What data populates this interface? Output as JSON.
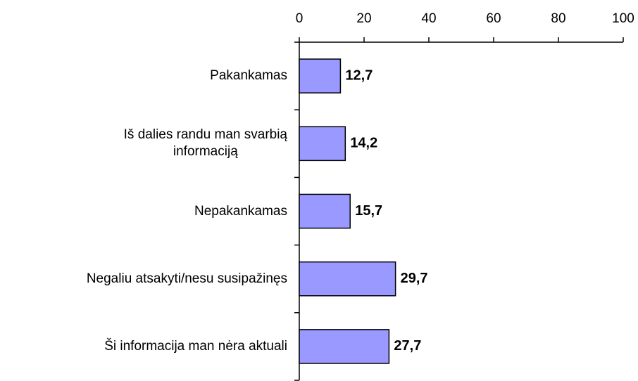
{
  "chart_data": {
    "type": "bar",
    "orientation": "horizontal",
    "categories": [
      "Pakankamas",
      "Iš dalies randu man svarbią\ninformaciją",
      "Nepakankamas",
      "Negaliu atsakyti/nesu susipažinęs",
      "Ši informacija man nėra aktuali"
    ],
    "values": [
      12.7,
      14.2,
      15.7,
      29.7,
      27.7
    ],
    "value_labels": [
      "12,7",
      "14,2",
      "15,7",
      "29,7",
      "27,7"
    ],
    "color": "#9999ff",
    "xlim": [
      0,
      100
    ],
    "xticks": [
      0,
      20,
      40,
      60,
      80,
      100
    ]
  }
}
